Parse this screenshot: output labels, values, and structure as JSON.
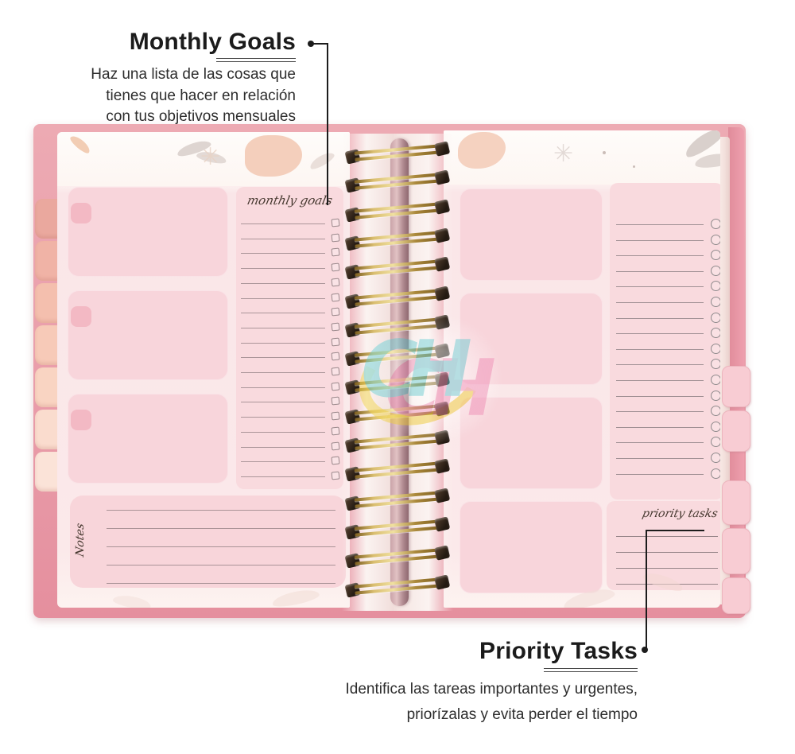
{
  "annotations": {
    "monthly_goals": {
      "title": "Monthly Goals",
      "description_lines": [
        "Haz una lista de las cosas que",
        "tienes que hacer en relación",
        "con tus objetivos mensuales"
      ]
    },
    "priority_tasks": {
      "title": "Priority Tasks",
      "description_lines": [
        "Identifica las tareas importantes y urgentes,",
        "priorízalas y evita perder el tiempo"
      ]
    }
  },
  "notebook": {
    "binding_style": "gold-spiral",
    "spiral_loops": 16,
    "left_page": {
      "section_label_script": "monthly goals",
      "notes_label_script": "Notes",
      "goal_checklist_lines": 18,
      "memo_blocks": 3,
      "notes_lines": 5
    },
    "right_page": {
      "section_label_script": "priority tasks",
      "task_list_lines": 17,
      "memo_blocks": 4,
      "priority_lines": 4,
      "side_tabs": 5
    },
    "left_edge_tabs": 7,
    "watermark_letters": "CH"
  },
  "colors": {
    "cover_pink": "#e99daa",
    "page_pink": "#fbe9ea",
    "memo_block_pink": "#f8d5db",
    "panel_pink": "#f9dade",
    "small_tab_pink": "#f3b9c4",
    "spiral_gold": "#c9a24b",
    "annotation_text": "#1b1b1b"
  }
}
